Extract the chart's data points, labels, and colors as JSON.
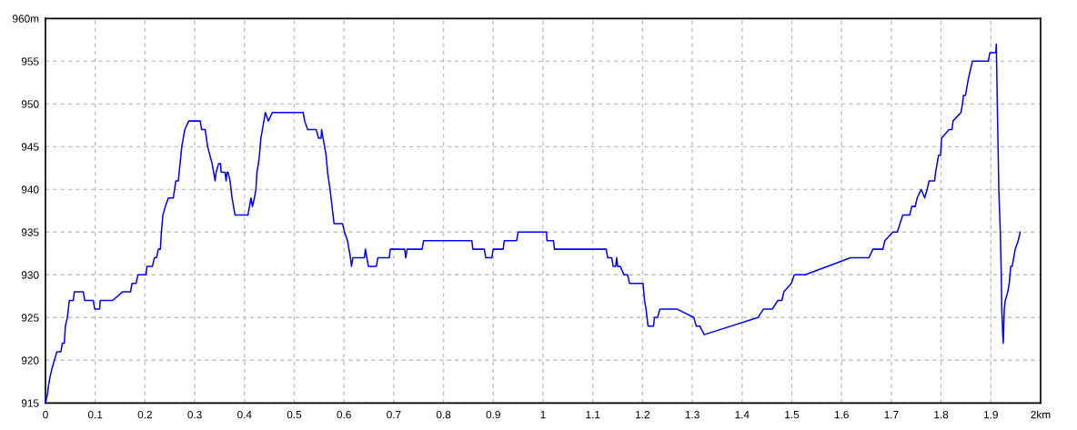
{
  "chart_data": {
    "type": "line",
    "x": [
      0,
      0.004,
      0.006,
      0.009,
      0.013,
      0.018,
      0.023,
      0.031,
      0.034,
      0.038,
      0.04,
      0.044,
      0.048,
      0.056,
      0.058,
      0.076,
      0.079,
      0.096,
      0.099,
      0.109,
      0.11,
      0.135,
      0.155,
      0.171,
      0.174,
      0.182,
      0.186,
      0.202,
      0.204,
      0.215,
      0.219,
      0.223,
      0.227,
      0.231,
      0.233,
      0.236,
      0.241,
      0.247,
      0.257,
      0.262,
      0.267,
      0.274,
      0.28,
      0.288,
      0.311,
      0.314,
      0.321,
      0.326,
      0.335,
      0.341,
      0.343,
      0.348,
      0.352,
      0.353,
      0.361,
      0.363,
      0.365,
      0.367,
      0.371,
      0.373,
      0.375,
      0.378,
      0.381,
      0.407,
      0.413,
      0.416,
      0.42,
      0.423,
      0.425,
      0.428,
      0.43,
      0.433,
      0.436,
      0.439,
      0.442,
      0.448,
      0.456,
      0.518,
      0.521,
      0.527,
      0.544,
      0.549,
      0.554,
      0.555,
      0.561,
      0.564,
      0.567,
      0.572,
      0.574,
      0.58,
      0.597,
      0.601,
      0.607,
      0.61,
      0.613,
      0.615,
      0.618,
      0.641,
      0.643,
      0.646,
      0.649,
      0.665,
      0.668,
      0.691,
      0.693,
      0.722,
      0.724,
      0.727,
      0.757,
      0.76,
      0.857,
      0.859,
      0.882,
      0.885,
      0.897,
      0.9,
      0.92,
      0.922,
      0.947,
      0.95,
      1.007,
      1.008,
      1.021,
      1.023,
      1.127,
      1.13,
      1.138,
      1.141,
      1.146,
      1.148,
      1.15,
      1.155,
      1.163,
      1.17,
      1.174,
      1.201,
      1.204,
      1.207,
      1.211,
      1.222,
      1.224,
      1.23,
      1.235,
      1.269,
      1.303,
      1.308,
      1.315,
      1.324,
      1.432,
      1.443,
      1.461,
      1.472,
      1.48,
      1.484,
      1.499,
      1.505,
      1.527,
      1.618,
      1.655,
      1.663,
      1.683,
      1.687,
      1.703,
      1.712,
      1.723,
      1.737,
      1.741,
      1.748,
      1.752,
      1.76,
      1.767,
      1.772,
      1.776,
      1.787,
      1.789,
      1.795,
      1.799,
      1.801,
      1.816,
      1.822,
      1.824,
      1.84,
      1.843,
      1.845,
      1.849,
      1.855,
      1.863,
      1.895,
      1.898,
      1.91,
      1.911,
      1.913,
      1.916,
      1.919,
      1.921,
      1.922,
      1.924,
      1.925,
      1.927,
      1.929,
      1.934,
      1.937,
      1.94,
      1.943,
      1.949,
      1.955,
      1.959
    ],
    "series": [
      {
        "color": "#0000ff",
        "values": [
          915,
          916,
          917,
          918,
          919,
          920,
          921,
          921,
          922,
          922,
          924,
          925,
          927,
          927,
          928,
          928,
          927,
          927,
          926,
          926,
          927,
          927,
          928,
          928,
          929,
          929,
          930,
          930,
          931,
          931,
          932,
          932,
          933,
          933,
          935,
          937,
          938,
          939,
          939,
          941,
          941,
          945,
          947,
          948,
          948,
          947,
          947,
          945,
          943,
          941,
          942,
          943,
          943,
          942,
          942,
          941,
          942,
          942,
          941,
          940,
          939,
          938,
          937,
          937,
          939,
          938,
          939,
          940,
          942,
          943,
          944,
          946,
          947,
          948,
          949,
          948,
          949,
          949,
          948,
          947,
          947,
          946,
          946,
          947,
          945,
          944,
          942,
          940,
          939,
          936,
          936,
          935,
          934,
          933,
          932,
          931,
          932,
          932,
          933,
          932,
          931,
          931,
          932,
          932,
          933,
          933,
          932,
          933,
          933,
          934,
          934,
          933,
          933,
          932,
          932,
          933,
          933,
          934,
          934,
          935,
          935,
          934,
          934,
          933,
          933,
          932,
          932,
          931,
          931,
          932,
          931,
          931,
          930,
          930,
          929,
          929,
          927,
          926,
          924,
          924,
          925,
          925,
          926,
          926,
          925,
          924,
          924,
          923,
          925,
          926,
          926,
          927,
          927,
          928,
          929,
          930,
          930,
          932,
          932,
          933,
          933,
          934,
          935,
          935,
          937,
          937,
          938,
          938,
          939,
          940,
          939,
          940,
          941,
          941,
          942,
          944,
          944,
          946,
          947,
          947,
          948,
          949,
          950,
          951,
          951,
          953,
          955,
          955,
          956,
          956,
          957,
          950,
          940,
          935,
          930,
          926,
          923,
          922,
          926,
          927,
          928,
          929,
          931,
          931,
          933,
          934,
          935
        ]
      }
    ],
    "xlim": [
      0,
      2
    ],
    "ylim": [
      915,
      960
    ],
    "xticks": [
      0,
      0.1,
      0.2,
      0.3,
      0.4,
      0.5,
      0.6,
      0.7,
      0.8,
      0.9,
      1,
      1.1,
      1.2,
      1.3,
      1.4,
      1.5,
      1.6,
      1.7,
      1.8,
      1.9,
      {
        "value": 2,
        "label": "2km"
      }
    ],
    "yticks": [
      915,
      920,
      925,
      930,
      935,
      940,
      945,
      950,
      955,
      {
        "value": 960,
        "label": "960m"
      }
    ],
    "grid": true,
    "marker": "none",
    "line_style": "solid"
  }
}
